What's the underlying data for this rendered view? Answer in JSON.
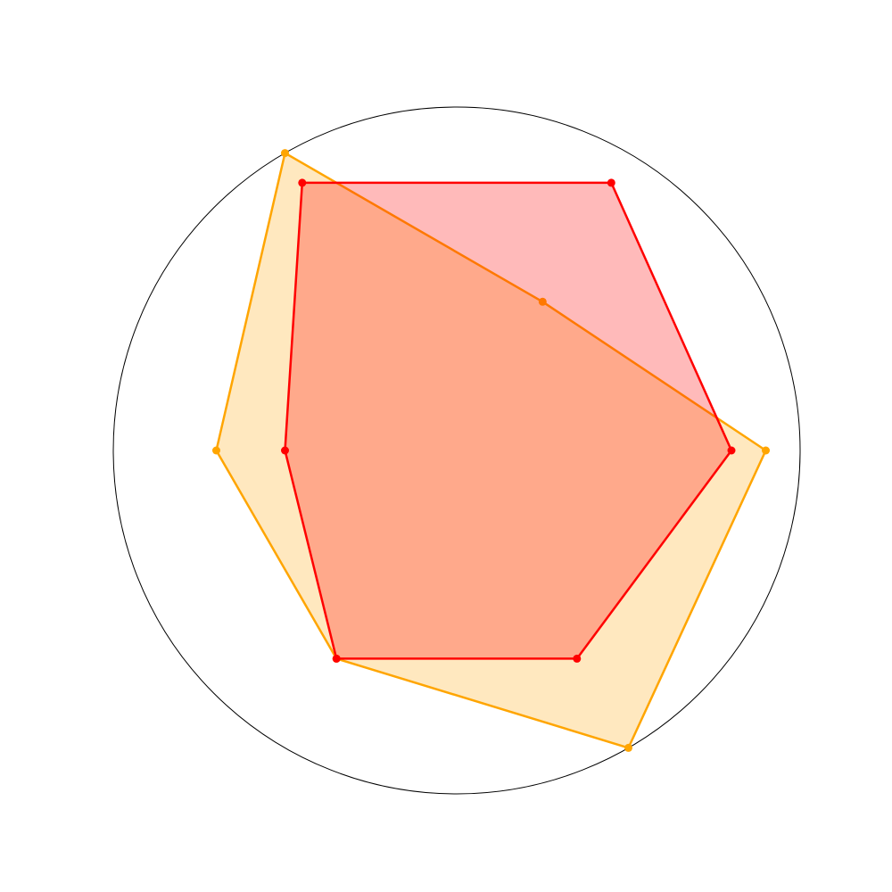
{
  "chart_data": {
    "type": "radar",
    "title": "",
    "axis_count": 6,
    "rmax": 100,
    "start_angle_deg": 0,
    "direction": "counterclockwise",
    "grid": false,
    "legend": "none",
    "frame": "circle",
    "series": [
      {
        "color": "#FFA500",
        "fill_color": "#FFA500",
        "fill_opacity": 0.25,
        "values": [
          90,
          50,
          100,
          70,
          70,
          100
        ]
      },
      {
        "color": "#FF0000",
        "fill_color": "#FF0000",
        "fill_opacity": 0.27,
        "values": [
          80,
          90,
          90,
          50,
          70,
          70
        ]
      }
    ]
  }
}
